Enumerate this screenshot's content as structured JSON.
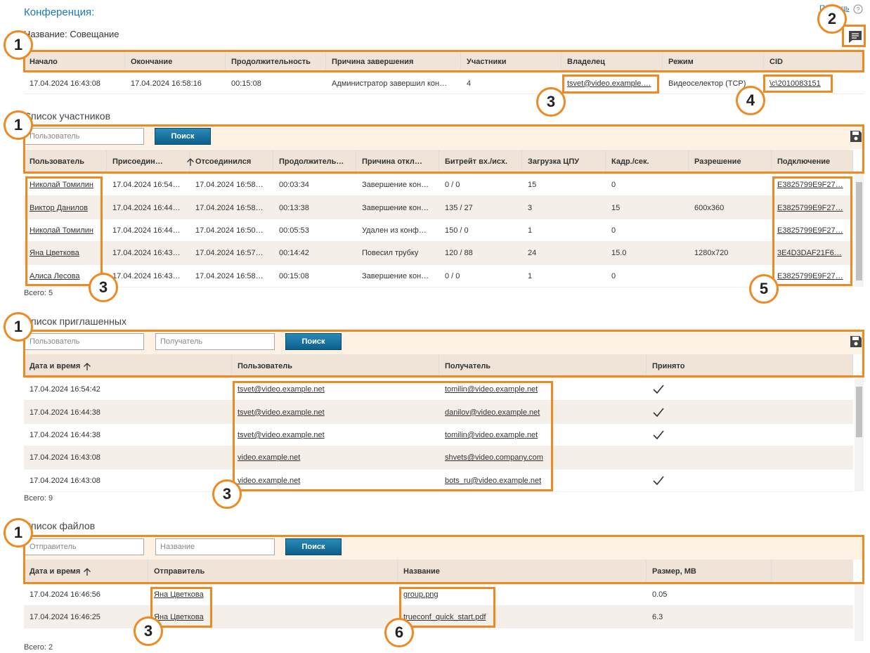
{
  "conference": {
    "title": "Конференция:",
    "name": "Название: Совещание",
    "help": "Помощь",
    "headers": [
      "Начало",
      "Окончание",
      "Продолжительность",
      "Причина завершения",
      "Участники",
      "Владелец",
      "Режим",
      "CID"
    ],
    "rows": [
      [
        "17.04.2024 16:43:08",
        "17.04.2024 16:58:16",
        "00:15:08",
        "Администратор завершил кон…",
        "4",
        "tsvet@video.example.…",
        "Видеоселектор (TCP)",
        "\\c\\2010083151"
      ]
    ]
  },
  "participants": {
    "title": "Список участников",
    "placeholders": [
      "Пользователь"
    ],
    "button": "Поиск",
    "headers": [
      "Пользователь",
      "Присоедин…",
      "Отсоединился",
      "Продолжитель…",
      "Причина откл…",
      "Битрейт вх./исх.",
      "Загрузка ЦПУ",
      "Кадр./сек.",
      "Разрешение",
      "Подключение"
    ],
    "rows": [
      [
        "Николай Томилин",
        "17.04.2024 16:54…",
        "17.04.2024 16:58…",
        "00:03:34",
        "Завершение кон…",
        "0 / 0",
        "15",
        "0",
        null,
        "E3825799E9F27…"
      ],
      [
        "Виктор Данилов",
        "17.04.2024 16:44…",
        "17.04.2024 16:58…",
        "00:13:38",
        "Завершение кон…",
        "135 / 27",
        "3",
        "15",
        "600x360",
        "E3825799E9F27…"
      ],
      [
        "Николай Томилин",
        "17.04.2024 16:44…",
        "17.04.2024 16:50…",
        "00:05:53",
        "Удален из конф…",
        "150 / 0",
        "1",
        "0",
        null,
        "E3825799E9F27…"
      ],
      [
        "Яна Цветкова",
        "17.04.2024 16:43…",
        "17.04.2024 16:57…",
        "00:14:42",
        "Повесил трубку",
        "120 / 88",
        "24",
        "15.0",
        "1280x720",
        "3E4D3DAF21F6…"
      ],
      [
        "Алиса Лесова",
        "17.04.2024 16:43…",
        "17.04.2024 16:58…",
        "00:15:08",
        "Завершение кон…",
        "0 / 0",
        "1",
        "0",
        null,
        "E3825799E9F27…"
      ]
    ],
    "total": "Всего: 5"
  },
  "invited": {
    "title": "Список приглашенных",
    "placeholders": [
      "Пользователь",
      "Получатель"
    ],
    "button": "Поиск",
    "headers": [
      "Дата и время",
      "Пользователь",
      "Получатель",
      "Принято"
    ],
    "rows": [
      [
        "17.04.2024 16:54:42",
        "tsvet@video.example.net",
        "tomilin@video.example.net",
        true
      ],
      [
        "17.04.2024 16:44:38",
        "tsvet@video.example.net",
        "danilov@video.example.net",
        true
      ],
      [
        "17.04.2024 16:44:38",
        "tsvet@video.example.net",
        "tomilin@video.example.net",
        true
      ],
      [
        "17.04.2024 16:43:08",
        "video.example.net",
        "shvets@video.company.com",
        false
      ],
      [
        "17.04.2024 16:43:08",
        "video.example.net",
        "bots_ru@video.example.net",
        true
      ]
    ],
    "total": "Всего: 9"
  },
  "files": {
    "title": "Список файлов",
    "placeholders": [
      "Отправитель",
      "Название"
    ],
    "button": "Поиск",
    "headers": [
      "Дата и время",
      "Отправитель",
      "Название",
      "Размер, MB"
    ],
    "rows": [
      [
        "17.04.2024 16:46:56",
        "Яна Цветкова",
        "group.png",
        "0.05"
      ],
      [
        "17.04.2024 16:46:25",
        "Яна Цветкова",
        "trueconf_quick_start.pdf",
        "6.3"
      ]
    ],
    "total": "Всего: 2"
  },
  "callouts": [
    1,
    2,
    3,
    4,
    1,
    3,
    5,
    1,
    3,
    1,
    3,
    6
  ]
}
